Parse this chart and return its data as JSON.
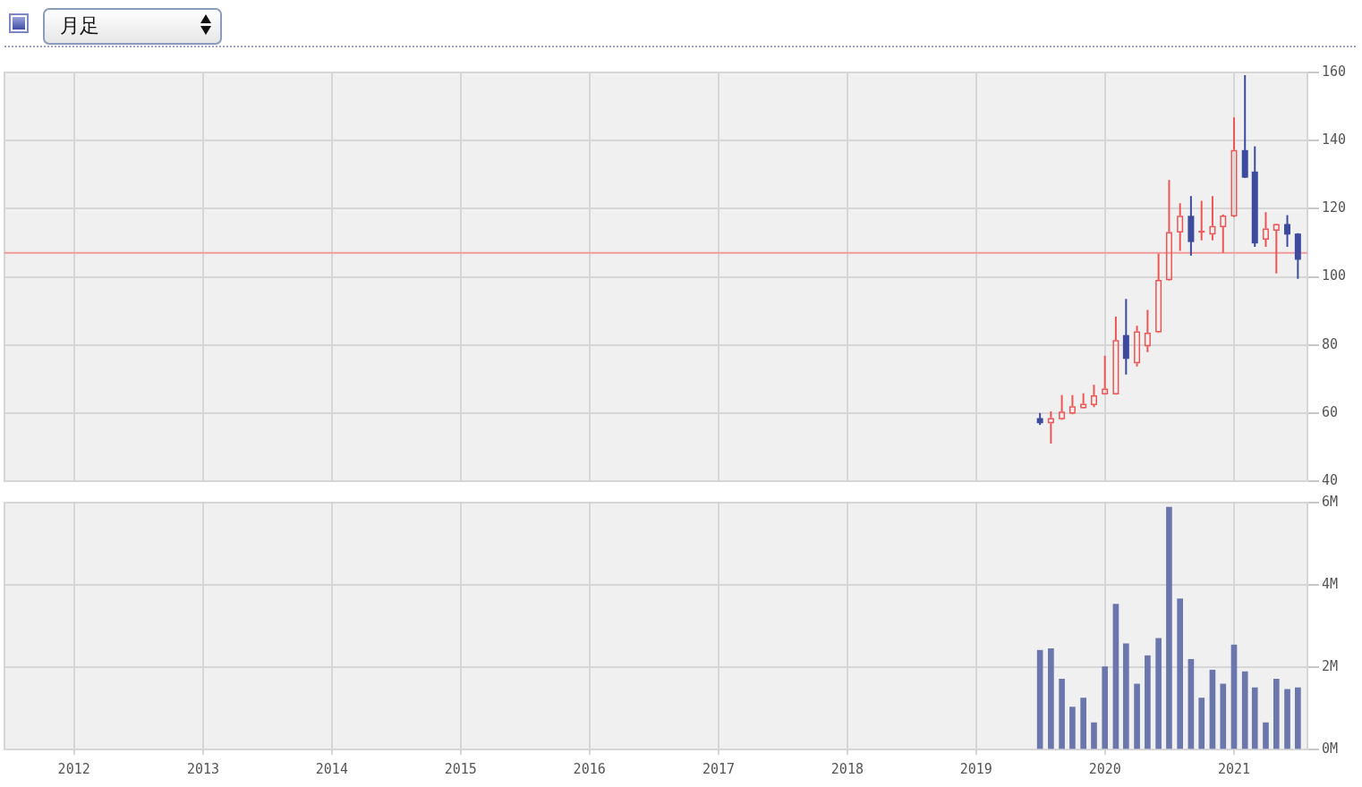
{
  "chart_data": [
    {
      "type": "candlestick",
      "x": [
        "2019-07",
        "2019-08",
        "2019-09",
        "2019-10",
        "2019-11",
        "2019-12",
        "2020-01",
        "2020-02",
        "2020-03",
        "2020-04",
        "2020-05",
        "2020-06",
        "2020-07",
        "2020-08",
        "2020-09",
        "2020-10",
        "2020-11",
        "2020-12",
        "2021-01",
        "2021-02",
        "2021-03",
        "2021-04",
        "2021-05",
        "2021-06",
        "2021-07"
      ],
      "ohlc": [
        [
          58.5,
          60,
          56.5,
          57
        ],
        [
          57,
          60.5,
          51,
          58.5
        ],
        [
          58.2,
          65.3,
          58,
          60.4
        ],
        [
          59.8,
          65.3,
          59.6,
          62
        ],
        [
          61.4,
          65.8,
          61.3,
          62.7
        ],
        [
          62.3,
          68.3,
          61.7,
          65.2
        ],
        [
          65.5,
          76.8,
          65.4,
          67.2
        ],
        [
          65.5,
          88.3,
          65.4,
          81.4
        ],
        [
          82.9,
          93.5,
          71.3,
          75.9
        ],
        [
          74.6,
          85.6,
          73.7,
          84
        ],
        [
          79.6,
          90.3,
          77.9,
          83.6
        ],
        [
          83.7,
          106.8,
          83.5,
          99.1
        ],
        [
          99,
          128.4,
          98.8,
          113.1
        ],
        [
          113,
          121.6,
          107.6,
          117.9
        ],
        [
          117.9,
          123.7,
          106.2,
          110.2
        ],
        [
          113,
          122.3,
          110.7,
          113.5
        ],
        [
          112.4,
          123.7,
          110.7,
          114.9
        ],
        [
          114.6,
          118.3,
          107,
          118
        ],
        [
          117.7,
          146.8,
          117.5,
          137.2
        ],
        [
          137.2,
          159.2,
          129,
          129.1
        ],
        [
          130.9,
          138.3,
          108.8,
          109.8
        ],
        [
          110.9,
          119,
          108.8,
          114.2
        ],
        [
          113.5,
          115.6,
          101,
          115.5
        ],
        [
          115.5,
          118.1,
          108.8,
          112.4
        ],
        [
          112.7,
          112.8,
          99.4,
          105
        ]
      ],
      "colors": [
        "#3d4b9e",
        "#ee5555",
        "#ee5555",
        "#ee5555",
        "#ee5555",
        "#ee5555",
        "#ee5555",
        "#ee5555",
        "#3d4b9e",
        "#ee5555",
        "#ee5555",
        "#ee5555",
        "#ee5555",
        "#ee5555",
        "#3d4b9e",
        "#ee5555",
        "#ee5555",
        "#ee5555",
        "#ee5555",
        "#3d4b9e",
        "#3d4b9e",
        "#ee5555",
        "#ee5555",
        "#3d4b9e",
        "#3d4b9e"
      ],
      "xlim": [
        "2011-06-18",
        "2021-07-28"
      ],
      "xticks": [
        "2012",
        "2013",
        "2014",
        "2015",
        "2016",
        "2017",
        "2018",
        "2019",
        "2020",
        "2021"
      ],
      "ylim": [
        40,
        160
      ],
      "yticks": [
        40,
        60,
        80,
        100,
        120,
        140,
        160
      ],
      "grid": true,
      "tick_labels": "y",
      "ref_lines": [
        {
          "axis": "y",
          "value": 107,
          "color": "#f29b9b"
        }
      ],
      "annotations": [
        "月足"
      ]
    },
    {
      "type": "bar",
      "x": [
        "2019-07",
        "2019-08",
        "2019-09",
        "2019-10",
        "2019-11",
        "2019-12",
        "2020-01",
        "2020-02",
        "2020-03",
        "2020-04",
        "2020-05",
        "2020-06",
        "2020-07",
        "2020-08",
        "2020-09",
        "2020-10",
        "2020-11",
        "2020-12",
        "2021-01",
        "2021-02",
        "2021-03",
        "2021-04",
        "2021-05",
        "2021-06",
        "2021-07"
      ],
      "values": [
        2.41,
        2.45,
        1.71,
        1.03,
        1.25,
        0.65,
        2.01,
        3.53,
        2.57,
        1.59,
        2.28,
        2.7,
        5.89,
        3.66,
        2.19,
        1.25,
        1.93,
        1.59,
        2.54,
        1.89,
        1.5,
        0.65,
        1.71,
        1.46,
        1.5
      ],
      "color": "#6b76ad",
      "xlim": [
        "2011-06-18",
        "2021-07-28"
      ],
      "xticks": [
        "2012",
        "2013",
        "2014",
        "2015",
        "2016",
        "2017",
        "2018",
        "2019",
        "2020",
        "2021"
      ],
      "ylim": [
        0,
        6
      ],
      "yticks": [
        {
          "value": 0,
          "label": "0M"
        },
        {
          "value": 2,
          "label": "2M"
        },
        {
          "value": 4,
          "label": "4M"
        },
        {
          "value": 6,
          "label": "6M"
        }
      ],
      "grid": true
    }
  ]
}
